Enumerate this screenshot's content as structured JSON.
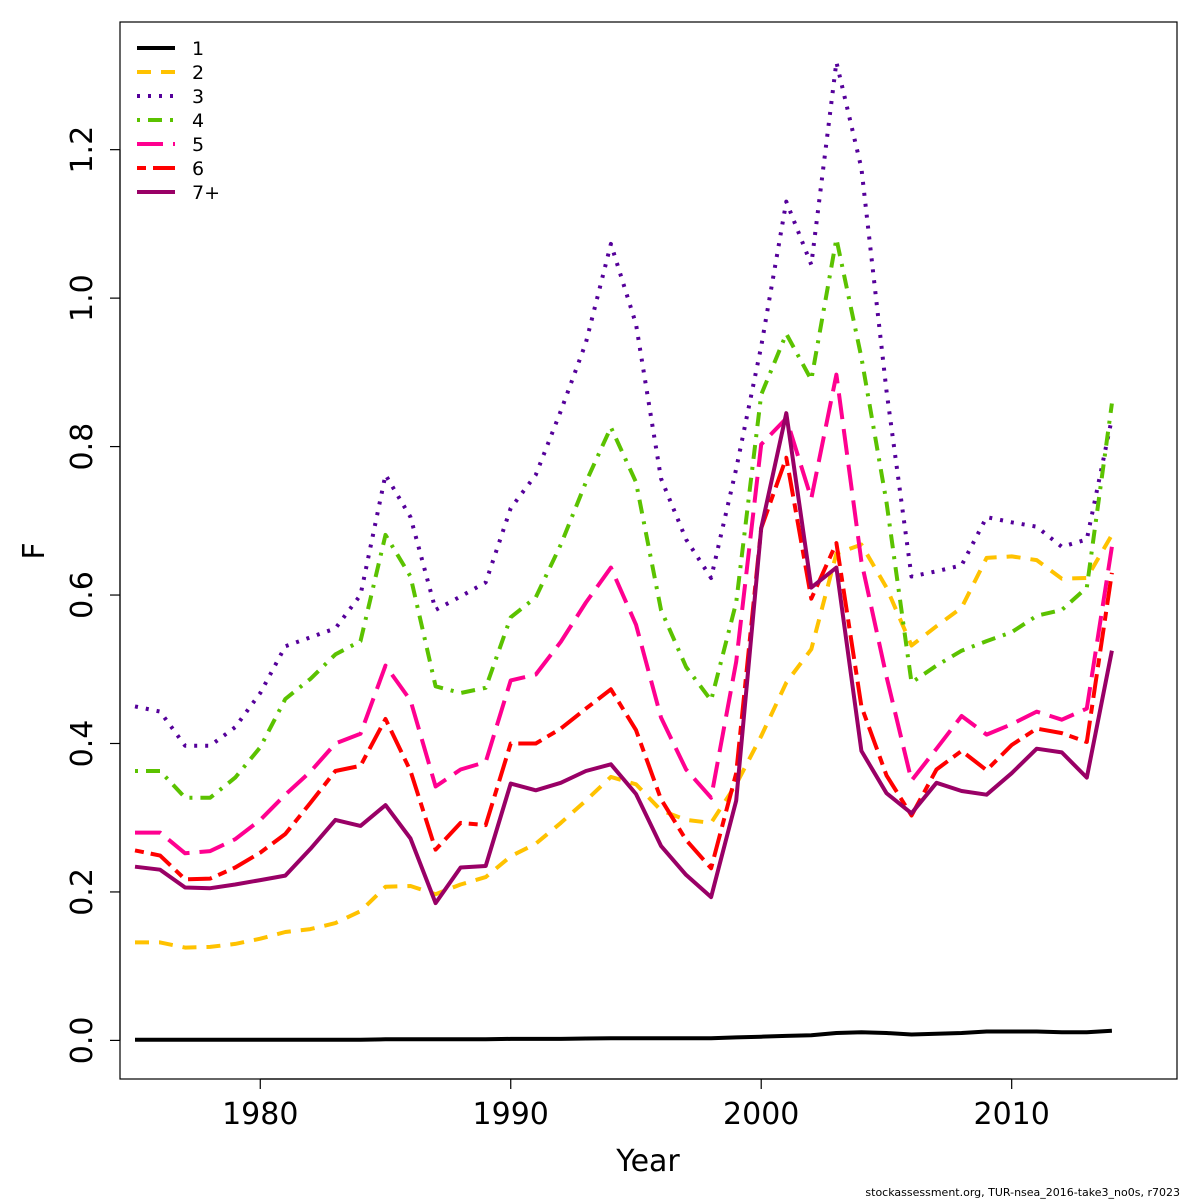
{
  "chart_data": {
    "type": "line",
    "xlabel": "Year",
    "ylabel": "F",
    "xlim": [
      1974.4,
      2016.6
    ],
    "ylim": [
      -0.052,
      1.372
    ],
    "xticks": [
      1980,
      1990,
      2000,
      2010
    ],
    "yticks": [
      0.0,
      0.2,
      0.4,
      0.6,
      0.8,
      1.0,
      1.2
    ],
    "ytick_labels": [
      "0.0",
      "0.2",
      "0.4",
      "0.6",
      "0.8",
      "1.0",
      "1.2"
    ],
    "legend_position": "top-left",
    "grid": false,
    "x": [
      1975,
      1976,
      1977,
      1978,
      1979,
      1980,
      1981,
      1982,
      1983,
      1984,
      1985,
      1986,
      1987,
      1988,
      1989,
      1990,
      1991,
      1992,
      1993,
      1994,
      1995,
      1996,
      1997,
      1998,
      1999,
      2000,
      2001,
      2002,
      2003,
      2004,
      2005,
      2006,
      2007,
      2008,
      2009,
      2010,
      2011,
      2012,
      2013,
      2014
    ],
    "series": [
      {
        "name": "1",
        "color": "#000000",
        "dash": "solid",
        "values": [
          0.001,
          0.001,
          0.001,
          0.001,
          0.001,
          0.001,
          0.001,
          0.001,
          0.001,
          0.001,
          0.0015,
          0.0015,
          0.0015,
          0.0015,
          0.0015,
          0.002,
          0.002,
          0.002,
          0.0025,
          0.003,
          0.003,
          0.003,
          0.003,
          0.003,
          0.004,
          0.005,
          0.006,
          0.007,
          0.01,
          0.011,
          0.01,
          0.008,
          0.009,
          0.01,
          0.012,
          0.012,
          0.012,
          0.011,
          0.011,
          0.013
        ]
      },
      {
        "name": "2",
        "color": "#FFC200",
        "dash": "dashed",
        "values": [
          0.132,
          0.132,
          0.125,
          0.126,
          0.13,
          0.137,
          0.146,
          0.15,
          0.158,
          0.174,
          0.207,
          0.208,
          0.197,
          0.21,
          0.22,
          0.248,
          0.265,
          0.293,
          0.323,
          0.355,
          0.345,
          0.31,
          0.297,
          0.293,
          0.345,
          0.41,
          0.482,
          0.527,
          0.656,
          0.668,
          0.61,
          0.532,
          0.558,
          0.583,
          0.65,
          0.652,
          0.647,
          0.622,
          0.623,
          0.681
        ]
      },
      {
        "name": "3",
        "color": "#55009A",
        "dash": "dotted",
        "values": [
          0.45,
          0.443,
          0.397,
          0.397,
          0.422,
          0.468,
          0.531,
          0.543,
          0.555,
          0.6,
          0.762,
          0.705,
          0.58,
          0.598,
          0.617,
          0.717,
          0.762,
          0.848,
          0.94,
          1.073,
          0.965,
          0.757,
          0.675,
          0.623,
          0.77,
          0.935,
          1.13,
          1.045,
          1.318,
          1.175,
          0.875,
          0.625,
          0.632,
          0.64,
          0.705,
          0.698,
          0.692,
          0.665,
          0.675,
          0.838
        ]
      },
      {
        "name": "4",
        "color": "#5BC200",
        "dash": "dotdash",
        "values": [
          0.363,
          0.363,
          0.327,
          0.327,
          0.354,
          0.395,
          0.46,
          0.487,
          0.52,
          0.538,
          0.681,
          0.625,
          0.477,
          0.468,
          0.475,
          0.57,
          0.597,
          0.668,
          0.752,
          0.826,
          0.752,
          0.58,
          0.503,
          0.458,
          0.59,
          0.87,
          0.952,
          0.89,
          1.08,
          0.92,
          0.725,
          0.482,
          0.505,
          0.525,
          0.538,
          0.55,
          0.572,
          0.58,
          0.61,
          0.858
        ]
      },
      {
        "name": "5",
        "color": "#FF0090",
        "dash": "longdash",
        "values": [
          0.28,
          0.28,
          0.252,
          0.255,
          0.271,
          0.297,
          0.331,
          0.362,
          0.4,
          0.413,
          0.505,
          0.458,
          0.342,
          0.365,
          0.375,
          0.485,
          0.493,
          0.537,
          0.59,
          0.637,
          0.56,
          0.435,
          0.365,
          0.327,
          0.51,
          0.803,
          0.838,
          0.73,
          0.897,
          0.645,
          0.49,
          0.35,
          0.393,
          0.437,
          0.412,
          0.426,
          0.443,
          0.432,
          0.447,
          0.665
        ]
      },
      {
        "name": "6",
        "color": "#FF0000",
        "dash": "twodash",
        "values": [
          0.256,
          0.249,
          0.217,
          0.218,
          0.233,
          0.253,
          0.278,
          0.32,
          0.363,
          0.37,
          0.433,
          0.363,
          0.257,
          0.293,
          0.29,
          0.4,
          0.4,
          0.42,
          0.447,
          0.473,
          0.418,
          0.325,
          0.27,
          0.232,
          0.36,
          0.69,
          0.785,
          0.595,
          0.67,
          0.45,
          0.357,
          0.303,
          0.365,
          0.39,
          0.364,
          0.398,
          0.42,
          0.414,
          0.402,
          0.63
        ]
      },
      {
        "name": "7+",
        "color": "#990066",
        "dash": "solid",
        "values": [
          0.234,
          0.23,
          0.206,
          0.205,
          0.21,
          0.216,
          0.222,
          0.258,
          0.297,
          0.289,
          0.317,
          0.272,
          0.185,
          0.233,
          0.235,
          0.346,
          0.337,
          0.347,
          0.363,
          0.372,
          0.332,
          0.262,
          0.223,
          0.193,
          0.323,
          0.69,
          0.845,
          0.61,
          0.637,
          0.39,
          0.333,
          0.306,
          0.347,
          0.336,
          0.331,
          0.36,
          0.393,
          0.388,
          0.354,
          0.525
        ]
      }
    ],
    "credit": "stockassessment.org, TUR-nsea_2016-take3_no0s, r7023"
  }
}
